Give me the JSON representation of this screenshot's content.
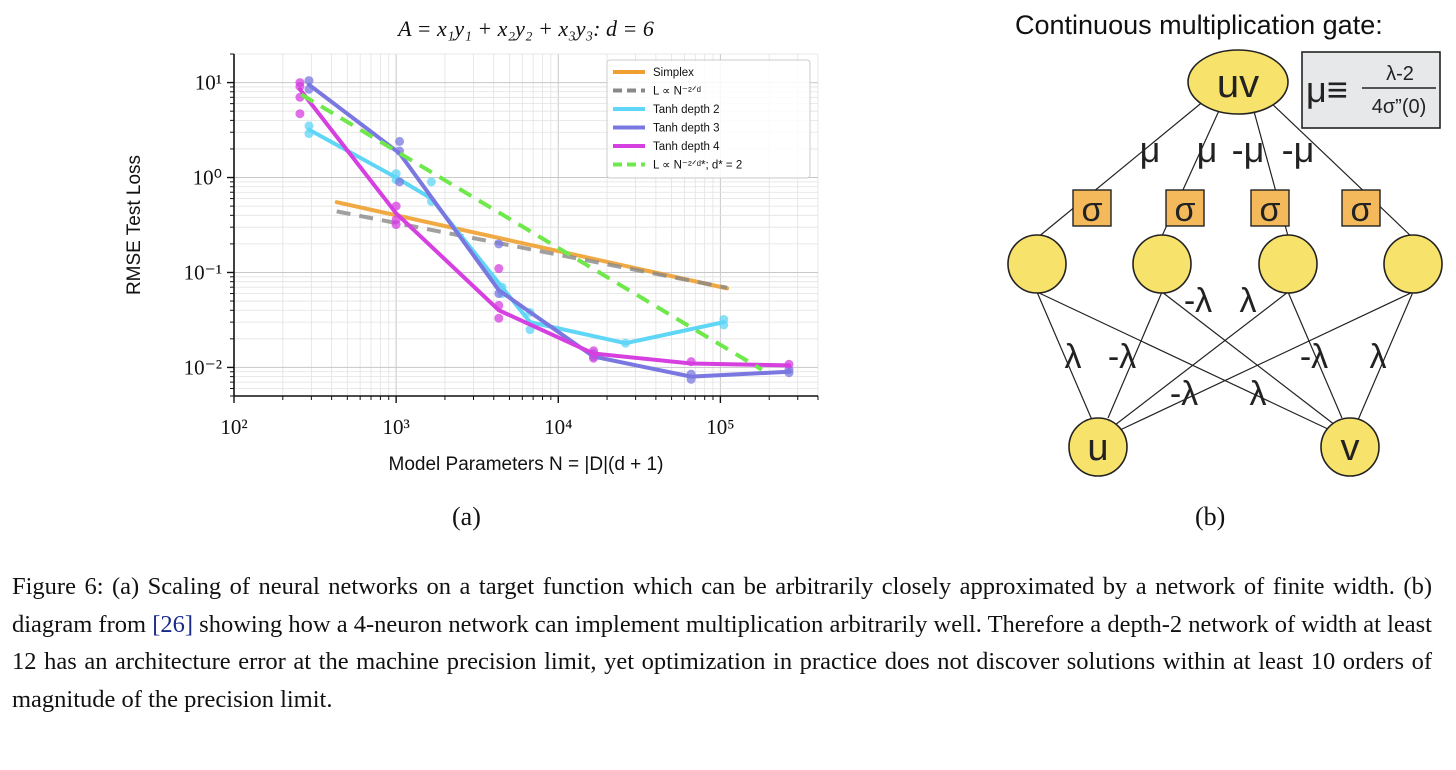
{
  "figure": {
    "panel_a_label": "(a)",
    "panel_b_label": "(b)",
    "caption_prefix": "Figure 6:",
    "caption_text_1": " (a) Scaling of neural networks on a target function which can be arbitrarily closely approximated by a network of finite width. (b) diagram from ",
    "caption_cite": "[26]",
    "caption_text_2": " showing how a 4-neuron network can implement multiplication arbitrarily well. Therefore a depth-2 network of width at least 12 has an architecture error at the machine precision limit, yet optimization in practice does not discover solutions within at least 10 orders of magnitude of the precision limit."
  },
  "chart_data": {
    "type": "line",
    "title": "A = x₁y₁ + x₂y₂ + x₃y₃: d = 6",
    "xlabel": "Model Parameters N = |D|(d + 1)",
    "ylabel": "RMSE Test Loss",
    "xscale": "log",
    "yscale": "log",
    "xlim": [
      100,
      400000
    ],
    "ylim": [
      0.005,
      20
    ],
    "x_ticks": [
      {
        "value": 100,
        "label": "10²"
      },
      {
        "value": 1000,
        "label": "10³"
      },
      {
        "value": 10000,
        "label": "10⁴"
      },
      {
        "value": 100000,
        "label": "10⁵"
      }
    ],
    "y_ticks": [
      {
        "value": 10,
        "label": "10¹"
      },
      {
        "value": 1,
        "label": "10⁰"
      },
      {
        "value": 0.1,
        "label": "10⁻¹"
      },
      {
        "value": 0.01,
        "label": "10⁻²"
      }
    ],
    "grid": true,
    "legend_position": "top-right",
    "series": [
      {
        "name": "Simplex",
        "color": "#f0a030",
        "style": "solid",
        "x": [
          430,
          110000
        ],
        "y": [
          0.55,
          0.068
        ]
      },
      {
        "name": "L ∝ N⁻²ᐟᵈ",
        "color": "#888888",
        "style": "dashed",
        "x": [
          430,
          110000
        ],
        "y": [
          0.44,
          0.069
        ]
      },
      {
        "name": "Tanh depth 2",
        "color": "#5fd6f5",
        "style": "solid",
        "x": [
          290,
          1000,
          1650,
          4500,
          6700,
          26000,
          105000
        ],
        "y": [
          3.2,
          1.0,
          0.6,
          0.07,
          0.03,
          0.018,
          0.03
        ],
        "points_x": [
          290,
          290,
          1000,
          1000,
          1650,
          1650,
          4500,
          4500,
          6700,
          6700,
          26000,
          105000,
          105000
        ],
        "points_y": [
          3.5,
          2.9,
          1.1,
          0.95,
          0.9,
          0.56,
          0.07,
          0.06,
          0.038,
          0.025,
          0.018,
          0.032,
          0.028
        ]
      },
      {
        "name": "Tanh depth 3",
        "color": "#7a78e0",
        "style": "solid",
        "x": [
          290,
          1050,
          4300,
          16500,
          66000,
          265000
        ],
        "y": [
          9.5,
          1.8,
          0.065,
          0.013,
          0.008,
          0.009
        ],
        "points_x": [
          290,
          290,
          1050,
          1050,
          1050,
          4300,
          4300,
          16500,
          16500,
          66000,
          66000,
          265000,
          265000
        ],
        "points_y": [
          10.5,
          8.5,
          2.4,
          1.9,
          0.9,
          0.2,
          0.06,
          0.014,
          0.013,
          0.0085,
          0.0075,
          0.0095,
          0.0088
        ]
      },
      {
        "name": "Tanh depth 4",
        "color": "#d63fe0",
        "style": "solid",
        "x": [
          255,
          1000,
          4300,
          16500,
          66000,
          265000
        ],
        "y": [
          8.5,
          0.42,
          0.04,
          0.014,
          0.011,
          0.0105
        ],
        "points_x": [
          255,
          255,
          255,
          255,
          1000,
          1000,
          1000,
          4300,
          4300,
          4300,
          16500,
          16500,
          66000,
          265000
        ],
        "points_y": [
          10,
          9.1,
          7,
          4.7,
          0.5,
          0.36,
          0.32,
          0.11,
          0.045,
          0.033,
          0.015,
          0.0125,
          0.0115,
          0.0108
        ]
      },
      {
        "name": "L ∝ N⁻²ᐟᵈ*; d* = 2",
        "color": "#6ee84a",
        "style": "dashed",
        "x": [
          260,
          180000
        ],
        "y": [
          7.5,
          0.0095
        ]
      }
    ]
  },
  "diagram": {
    "title": "Continuous multiplication gate:",
    "formula_lhs": "μ≡",
    "formula_num": "λ-2",
    "formula_den": "4σ”(0)",
    "top_node": "uv",
    "sigma_label": "σ",
    "bottom_left": "u",
    "bottom_right": "v",
    "upper_weights": [
      "μ",
      "μ",
      "-μ",
      "-μ"
    ],
    "lower_weights": [
      "λ",
      "-λ",
      "-λ",
      "λ",
      "-λ",
      "λ",
      "-λ",
      "λ"
    ]
  }
}
